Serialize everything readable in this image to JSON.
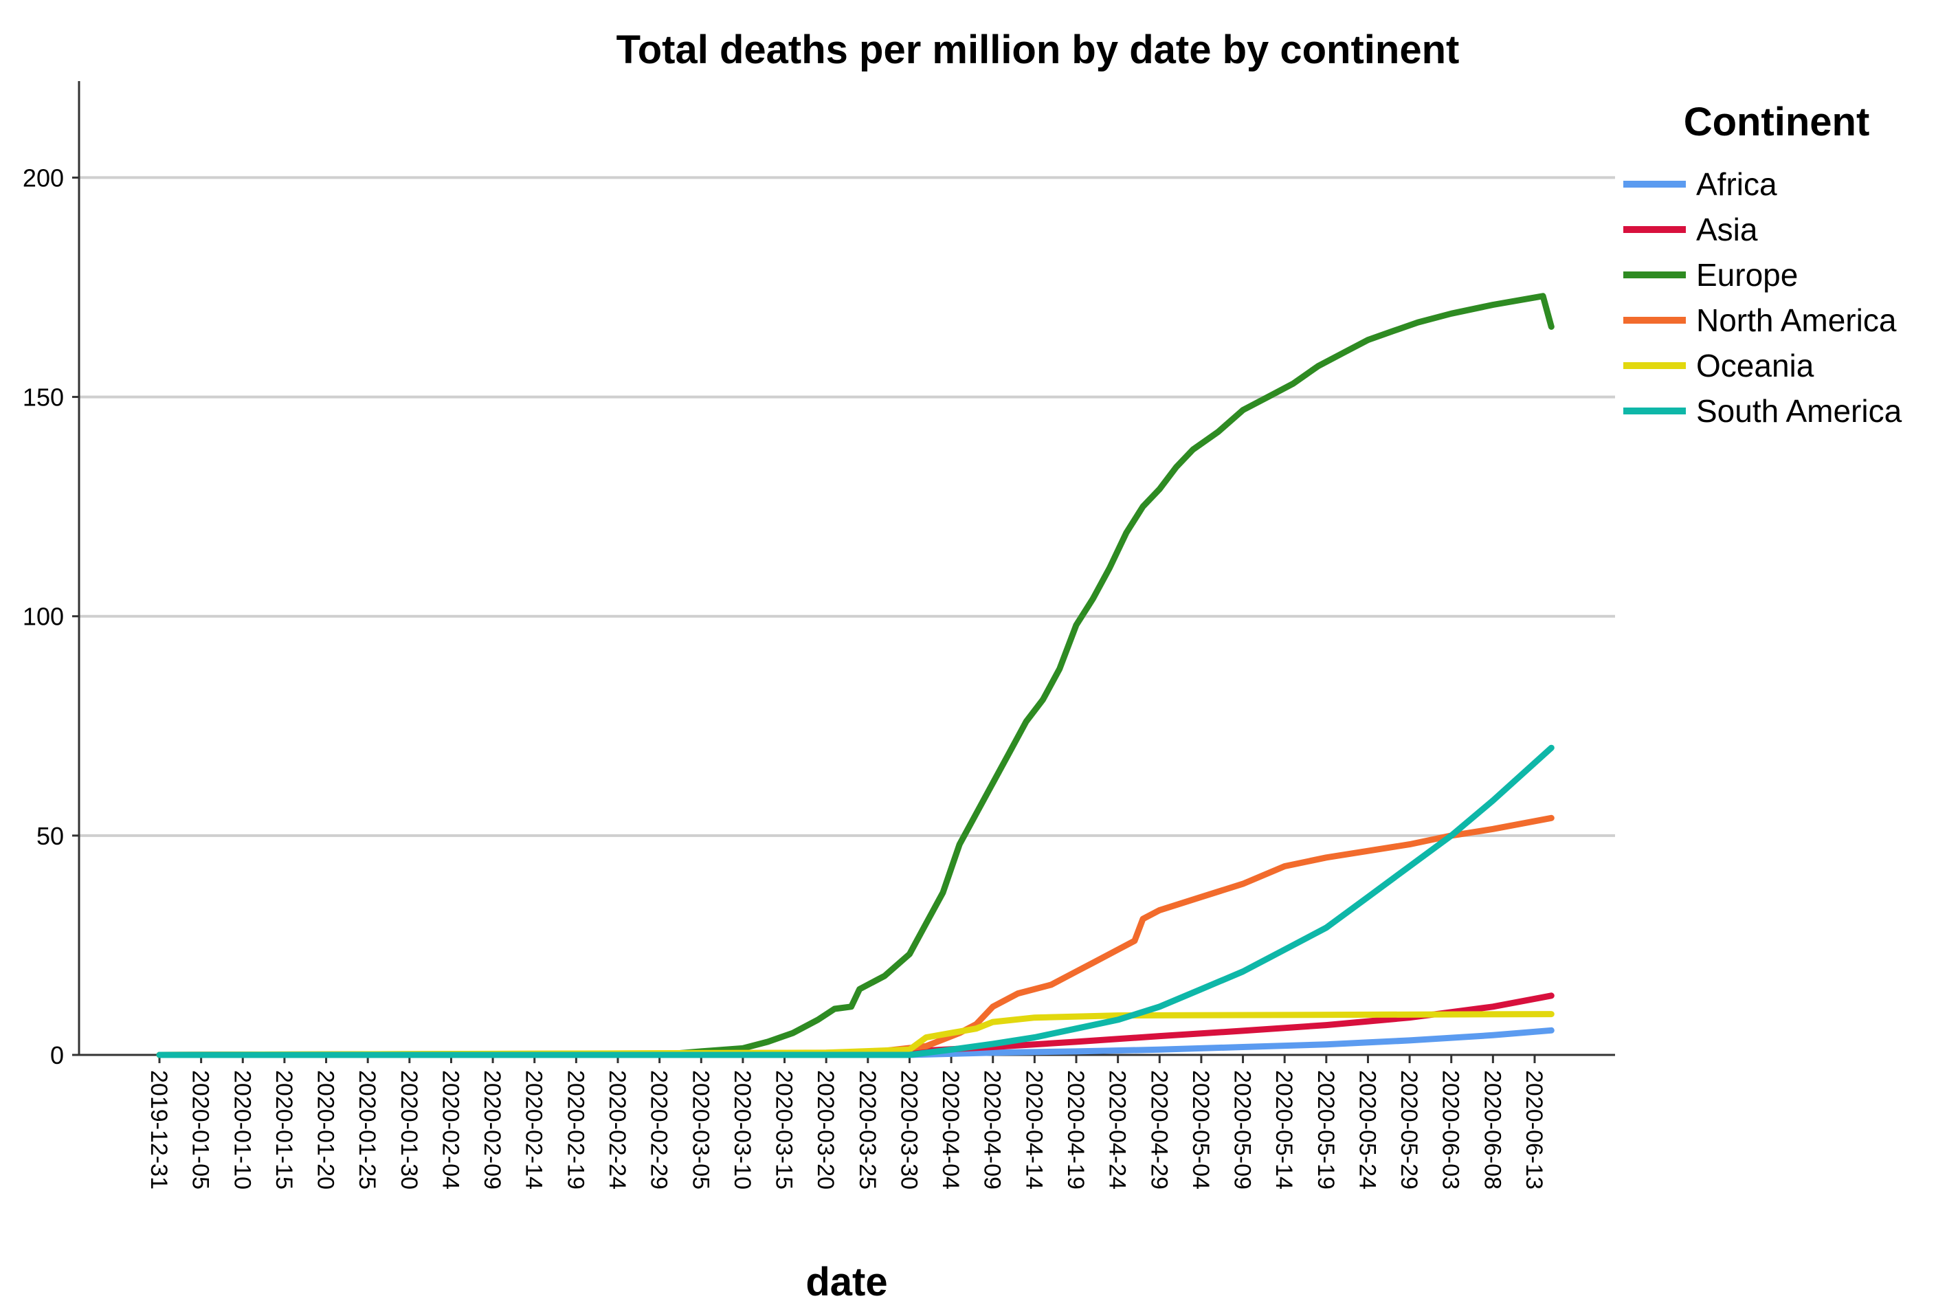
{
  "chart_data": {
    "type": "line",
    "title": "Total deaths per million by date by continent",
    "xlabel": "date",
    "ylabel": "",
    "ylim": [
      0,
      222
    ],
    "yticks": [
      0,
      50,
      100,
      150,
      200
    ],
    "grid": true,
    "legend_title": "Continent",
    "legend_position": "top-right",
    "x_start": "2019-12-31",
    "x_end": "2020-06-15",
    "xtick_labels": [
      "2019-12-31",
      "2020-01-05",
      "2020-01-10",
      "2020-01-15",
      "2020-01-20",
      "2020-01-25",
      "2020-01-30",
      "2020-02-04",
      "2020-02-09",
      "2020-02-14",
      "2020-02-19",
      "2020-02-24",
      "2020-02-29",
      "2020-03-05",
      "2020-03-10",
      "2020-03-15",
      "2020-03-20",
      "2020-03-25",
      "2020-03-30",
      "2020-04-04",
      "2020-04-09",
      "2020-04-14",
      "2020-04-19",
      "2020-04-24",
      "2020-04-29",
      "2020-05-04",
      "2020-05-09",
      "2020-05-14",
      "2020-05-19",
      "2020-05-24",
      "2020-05-29",
      "2020-06-03",
      "2020-06-08",
      "2020-06-13"
    ],
    "series": [
      {
        "name": "Africa",
        "color": "#5b9bf0",
        "points": [
          [
            "2019-12-31",
            0
          ],
          [
            "2020-03-30",
            0
          ],
          [
            "2020-04-09",
            0.5
          ],
          [
            "2020-04-19",
            0.8
          ],
          [
            "2020-04-29",
            1.2
          ],
          [
            "2020-05-09",
            1.8
          ],
          [
            "2020-05-19",
            2.4
          ],
          [
            "2020-05-29",
            3.3
          ],
          [
            "2020-06-08",
            4.5
          ],
          [
            "2020-06-15",
            5.6
          ]
        ]
      },
      {
        "name": "Asia",
        "color": "#d8103d",
        "points": [
          [
            "2019-12-31",
            0
          ],
          [
            "2020-03-15",
            0.3
          ],
          [
            "2020-03-30",
            0.8
          ],
          [
            "2020-04-09",
            1.8
          ],
          [
            "2020-04-19",
            3.0
          ],
          [
            "2020-04-29",
            4.3
          ],
          [
            "2020-05-09",
            5.5
          ],
          [
            "2020-05-19",
            6.8
          ],
          [
            "2020-05-29",
            8.5
          ],
          [
            "2020-06-08",
            11.0
          ],
          [
            "2020-06-15",
            13.5
          ]
        ]
      },
      {
        "name": "Europe",
        "color": "#2e8b22",
        "points": [
          [
            "2019-12-31",
            0
          ],
          [
            "2020-02-29",
            0
          ],
          [
            "2020-03-05",
            0.8
          ],
          [
            "2020-03-10",
            1.5
          ],
          [
            "2020-03-13",
            3
          ],
          [
            "2020-03-16",
            5
          ],
          [
            "2020-03-19",
            8
          ],
          [
            "2020-03-21",
            10.5
          ],
          [
            "2020-03-23",
            11
          ],
          [
            "2020-03-24",
            15
          ],
          [
            "2020-03-27",
            18
          ],
          [
            "2020-03-30",
            23
          ],
          [
            "2020-04-01",
            30
          ],
          [
            "2020-04-03",
            37
          ],
          [
            "2020-04-05",
            48
          ],
          [
            "2020-04-07",
            55
          ],
          [
            "2020-04-09",
            62
          ],
          [
            "2020-04-11",
            69
          ],
          [
            "2020-04-13",
            76
          ],
          [
            "2020-04-15",
            81
          ],
          [
            "2020-04-17",
            88
          ],
          [
            "2020-04-19",
            98
          ],
          [
            "2020-04-21",
            104
          ],
          [
            "2020-04-23",
            111
          ],
          [
            "2020-04-25",
            119
          ],
          [
            "2020-04-27",
            125
          ],
          [
            "2020-04-29",
            129
          ],
          [
            "2020-05-01",
            134
          ],
          [
            "2020-05-03",
            138
          ],
          [
            "2020-05-06",
            142
          ],
          [
            "2020-05-09",
            147
          ],
          [
            "2020-05-12",
            150
          ],
          [
            "2020-05-15",
            153
          ],
          [
            "2020-05-18",
            157
          ],
          [
            "2020-05-21",
            160
          ],
          [
            "2020-05-24",
            163
          ],
          [
            "2020-05-27",
            165
          ],
          [
            "2020-05-30",
            167
          ],
          [
            "2020-06-03",
            169
          ],
          [
            "2020-06-08",
            171
          ],
          [
            "2020-06-14",
            173
          ],
          [
            "2020-06-15",
            166
          ]
        ]
      },
      {
        "name": "North America",
        "color": "#f26b2c",
        "points": [
          [
            "2019-12-31",
            0
          ],
          [
            "2020-03-25",
            0.5
          ],
          [
            "2020-04-01",
            2
          ],
          [
            "2020-04-05",
            5
          ],
          [
            "2020-04-07",
            7
          ],
          [
            "2020-04-09",
            11
          ],
          [
            "2020-04-12",
            14
          ],
          [
            "2020-04-16",
            16
          ],
          [
            "2020-04-19",
            19
          ],
          [
            "2020-04-21",
            21
          ],
          [
            "2020-04-24",
            24
          ],
          [
            "2020-04-26",
            26
          ],
          [
            "2020-04-27",
            31
          ],
          [
            "2020-04-29",
            33
          ],
          [
            "2020-05-04",
            36
          ],
          [
            "2020-05-09",
            39
          ],
          [
            "2020-05-14",
            43
          ],
          [
            "2020-05-19",
            45
          ],
          [
            "2020-05-24",
            46.5
          ],
          [
            "2020-05-29",
            48
          ],
          [
            "2020-06-03",
            50
          ],
          [
            "2020-06-08",
            51.5
          ],
          [
            "2020-06-15",
            54
          ]
        ]
      },
      {
        "name": "Oceania",
        "color": "#e2d80e",
        "points": [
          [
            "2019-12-31",
            0
          ],
          [
            "2020-03-20",
            0.5
          ],
          [
            "2020-03-30",
            1.2
          ],
          [
            "2020-04-01",
            4
          ],
          [
            "2020-04-04",
            5
          ],
          [
            "2020-04-07",
            6
          ],
          [
            "2020-04-09",
            7.5
          ],
          [
            "2020-04-14",
            8.5
          ],
          [
            "2020-04-24",
            9
          ],
          [
            "2020-06-15",
            9.3
          ]
        ]
      },
      {
        "name": "South America",
        "color": "#0eb7a8",
        "points": [
          [
            "2019-12-31",
            0
          ],
          [
            "2020-03-30",
            0
          ],
          [
            "2020-04-04",
            1.2
          ],
          [
            "2020-04-09",
            2.5
          ],
          [
            "2020-04-14",
            4
          ],
          [
            "2020-04-19",
            6
          ],
          [
            "2020-04-24",
            8
          ],
          [
            "2020-04-29",
            11
          ],
          [
            "2020-05-04",
            15
          ],
          [
            "2020-05-09",
            19
          ],
          [
            "2020-05-14",
            24
          ],
          [
            "2020-05-19",
            29
          ],
          [
            "2020-05-24",
            36
          ],
          [
            "2020-05-29",
            43
          ],
          [
            "2020-06-03",
            50
          ],
          [
            "2020-06-08",
            58
          ],
          [
            "2020-06-15",
            70
          ]
        ]
      }
    ]
  }
}
